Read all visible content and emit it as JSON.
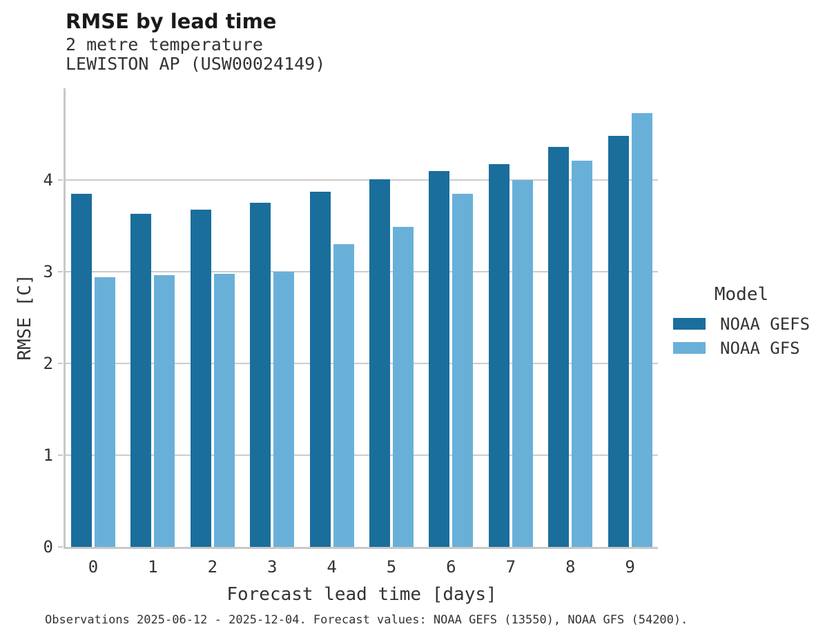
{
  "chart_data": {
    "type": "bar",
    "title": "RMSE by lead time",
    "subtitle1": "2 metre temperature",
    "subtitle2": "LEWISTON AP (USW00024149)",
    "xlabel": "Forecast lead time [days]",
    "ylabel": "RMSE [C]",
    "categories": [
      "0",
      "1",
      "2",
      "3",
      "4",
      "5",
      "6",
      "7",
      "8",
      "9"
    ],
    "series": [
      {
        "name": "NOAA GEFS",
        "color": "#1a6e9c",
        "values": [
          3.85,
          3.63,
          3.68,
          3.75,
          3.87,
          4.01,
          4.1,
          4.17,
          4.36,
          4.48
        ]
      },
      {
        "name": "NOAA GFS",
        "color": "#69b0d9",
        "values": [
          2.94,
          2.96,
          2.98,
          3.0,
          3.3,
          3.49,
          3.85,
          4.0,
          4.21,
          4.73
        ]
      }
    ],
    "ylim": [
      0,
      5
    ],
    "yticks": [
      0,
      1,
      2,
      3,
      4
    ],
    "grid": "horizontal",
    "legend_title": "Model",
    "legend_position": "right",
    "caption": "Observations 2025-06-12 - 2025-12-04. Forecast values: NOAA GEFS (13550), NOAA GFS (54200)."
  },
  "colors": {
    "gefs_bar": "#1a6e9c",
    "gfs_bar": "#69b0d9",
    "gridline": "#cccccc",
    "spine": "#c8c8c8",
    "text": "#333333",
    "title_text": "#1a1a1a",
    "background": "#ffffff"
  }
}
